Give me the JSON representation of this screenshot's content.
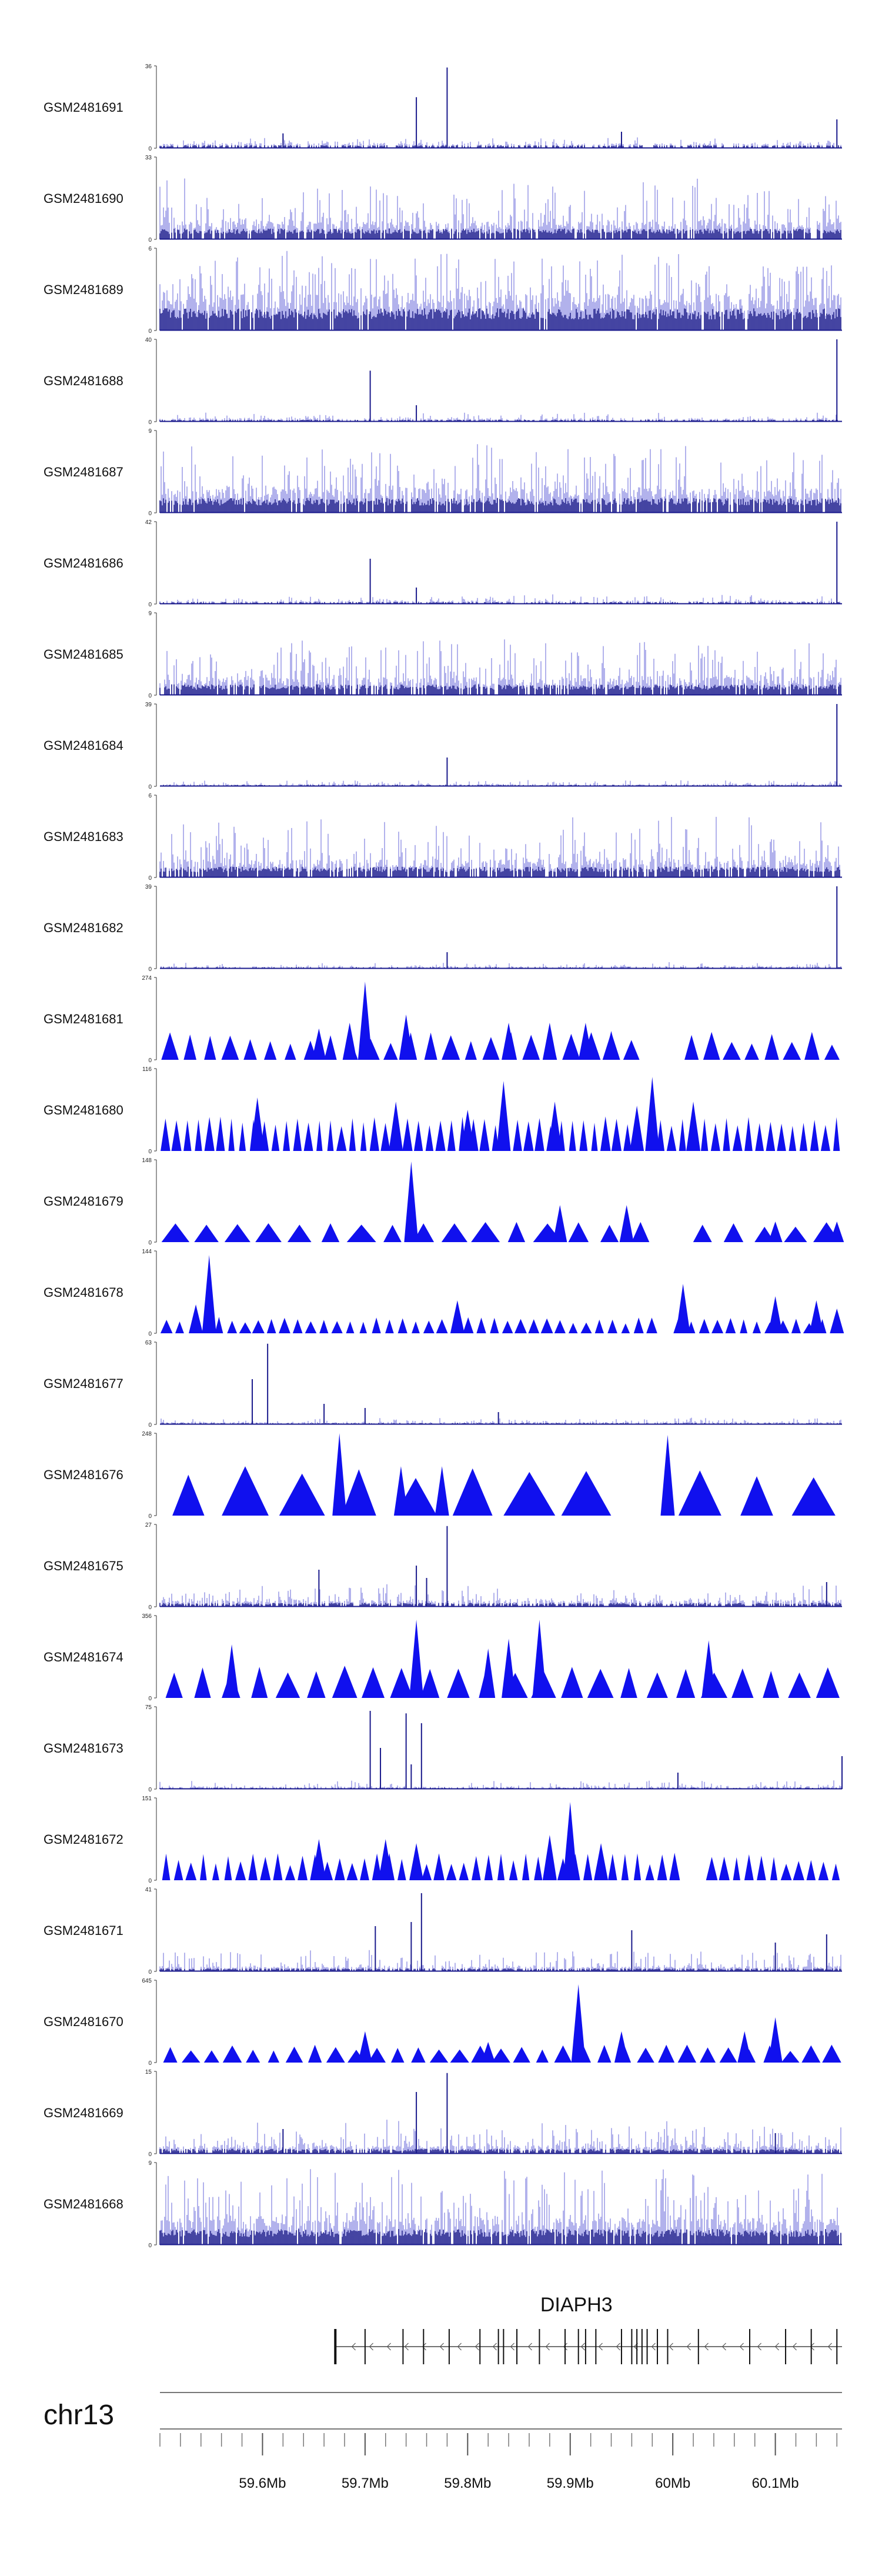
{
  "chart_data": {
    "type": "genome-browser",
    "chromosome": "chr13",
    "xlim_mb": [
      59.5,
      60.165
    ],
    "tracks": [
      {
        "name": "GSM2481691",
        "ymax": "36",
        "ymin": "0",
        "style": "bar",
        "fill": "#1a1a8c",
        "baseline": 0.06,
        "noise": 0.08,
        "density": 0.55,
        "peaks": [
          [
            59.75,
            0.62
          ],
          [
            59.78,
            0.98
          ],
          [
            59.62,
            0.18
          ],
          [
            59.95,
            0.2
          ],
          [
            60.16,
            0.35
          ]
        ]
      },
      {
        "name": "GSM2481690",
        "ymax": "33",
        "ymin": "0",
        "style": "bar",
        "fill": "#1a1a8c",
        "baseline": 0.22,
        "noise": 0.55,
        "density": 0.85,
        "peaks": []
      },
      {
        "name": "GSM2481689",
        "ymax": "6",
        "ymin": "0",
        "style": "bar",
        "fill": "#1a1a8c",
        "baseline": 0.45,
        "noise": 0.6,
        "density": 0.95,
        "peaks": []
      },
      {
        "name": "GSM2481688",
        "ymax": "40",
        "ymin": "0",
        "style": "bar",
        "fill": "#1a1a8c",
        "baseline": 0.04,
        "noise": 0.08,
        "density": 0.55,
        "peaks": [
          [
            59.705,
            0.62
          ],
          [
            59.75,
            0.2
          ],
          [
            60.16,
            1.0
          ]
        ]
      },
      {
        "name": "GSM2481687",
        "ymax": "9",
        "ymin": "0",
        "style": "bar",
        "fill": "#1a1a8c",
        "baseline": 0.3,
        "noise": 0.6,
        "density": 0.9,
        "peaks": []
      },
      {
        "name": "GSM2481686",
        "ymax": "42",
        "ymin": "0",
        "style": "bar",
        "fill": "#1a1a8c",
        "baseline": 0.04,
        "noise": 0.08,
        "density": 0.55,
        "peaks": [
          [
            59.705,
            0.55
          ],
          [
            59.75,
            0.2
          ],
          [
            60.16,
            1.0
          ]
        ]
      },
      {
        "name": "GSM2481685",
        "ymax": "9",
        "ymin": "0",
        "style": "bar",
        "fill": "#1a1a8c",
        "baseline": 0.22,
        "noise": 0.5,
        "density": 0.85,
        "peaks": []
      },
      {
        "name": "GSM2481684",
        "ymax": "39",
        "ymin": "0",
        "style": "bar",
        "fill": "#1a1a8c",
        "baseline": 0.03,
        "noise": 0.05,
        "density": 0.5,
        "peaks": [
          [
            59.78,
            0.35
          ],
          [
            60.16,
            1.0
          ]
        ]
      },
      {
        "name": "GSM2481683",
        "ymax": "6",
        "ymin": "0",
        "style": "bar",
        "fill": "#1a1a8c",
        "baseline": 0.22,
        "noise": 0.55,
        "density": 0.8,
        "peaks": []
      },
      {
        "name": "GSM2481682",
        "ymax": "39",
        "ymin": "0",
        "style": "bar",
        "fill": "#1a1a8c",
        "baseline": 0.03,
        "noise": 0.05,
        "density": 0.5,
        "peaks": [
          [
            59.78,
            0.2
          ],
          [
            60.16,
            1.0
          ]
        ]
      },
      {
        "name": "GSM2481681",
        "ymax": "274",
        "ymin": "0",
        "style": "tri",
        "fill": "#1010ee",
        "n": 34,
        "hmin": 0.18,
        "hmax": 0.35,
        "gaps": [
          [
            59.97,
            60.015
          ]
        ],
        "peaks": [
          [
            59.7,
            0.95
          ],
          [
            59.655,
            0.38
          ],
          [
            59.685,
            0.45
          ],
          [
            59.74,
            0.55
          ],
          [
            59.84,
            0.45
          ],
          [
            59.88,
            0.45
          ],
          [
            59.915,
            0.45
          ],
          [
            59.94,
            0.35
          ]
        ]
      },
      {
        "name": "GSM2481680",
        "ymax": "116",
        "ymin": "0",
        "style": "tri",
        "fill": "#1010ee",
        "n": 62,
        "hmin": 0.3,
        "hmax": 0.42,
        "gaps": [],
        "peaks": [
          [
            59.595,
            0.65
          ],
          [
            59.73,
            0.6
          ],
          [
            59.8,
            0.5
          ],
          [
            59.835,
            0.85
          ],
          [
            59.885,
            0.6
          ],
          [
            59.965,
            0.55
          ],
          [
            59.98,
            0.9
          ],
          [
            60.02,
            0.6
          ]
        ]
      },
      {
        "name": "GSM2481679",
        "ymax": "148",
        "ymin": "0",
        "style": "tri",
        "fill": "#1010ee",
        "n": 22,
        "hmin": 0.18,
        "hmax": 0.25,
        "gaps": [
          [
            59.97,
            60.005
          ]
        ],
        "peaks": [
          [
            59.745,
            0.98
          ],
          [
            59.89,
            0.45
          ],
          [
            59.955,
            0.45
          ],
          [
            60.1,
            0.25
          ],
          [
            60.16,
            0.25
          ]
        ]
      },
      {
        "name": "GSM2481678",
        "ymax": "144",
        "ymin": "0",
        "style": "tri",
        "fill": "#1010ee",
        "n": 52,
        "hmin": 0.12,
        "hmax": 0.2,
        "gaps": [
          [
            59.98,
            60.005
          ]
        ],
        "peaks": [
          [
            59.548,
            0.95
          ],
          [
            59.535,
            0.35
          ],
          [
            59.79,
            0.4
          ],
          [
            60.01,
            0.6
          ],
          [
            60.1,
            0.45
          ],
          [
            60.14,
            0.4
          ],
          [
            60.16,
            0.3
          ]
        ]
      },
      {
        "name": "GSM2481677",
        "ymax": "63",
        "ymin": "0",
        "style": "bar",
        "fill": "#1a1a8c",
        "baseline": 0.03,
        "noise": 0.06,
        "density": 0.55,
        "peaks": [
          [
            59.59,
            0.55
          ],
          [
            59.605,
            0.98
          ],
          [
            59.66,
            0.25
          ],
          [
            59.7,
            0.2
          ],
          [
            59.83,
            0.15
          ]
        ]
      },
      {
        "name": "GSM2481676",
        "ymax": "248",
        "ymin": "0",
        "style": "tri",
        "fill": "#1010ee",
        "n": 12,
        "hmin": 0.45,
        "hmax": 0.6,
        "gaps": [
          [
            59.96,
            59.99
          ]
        ],
        "peaks": [
          [
            59.675,
            1.0
          ],
          [
            59.995,
            0.98
          ],
          [
            59.735,
            0.6
          ],
          [
            59.775,
            0.6
          ]
        ]
      },
      {
        "name": "GSM2481675",
        "ymax": "27",
        "ymin": "0",
        "style": "bar",
        "fill": "#1a1a8c",
        "baseline": 0.08,
        "noise": 0.2,
        "density": 0.7,
        "peaks": [
          [
            59.78,
            0.98
          ],
          [
            59.655,
            0.45
          ],
          [
            59.75,
            0.5
          ],
          [
            59.76,
            0.35
          ],
          [
            60.15,
            0.3
          ]
        ]
      },
      {
        "name": "GSM2481674",
        "ymax": "356",
        "ymin": "0",
        "style": "tri",
        "fill": "#1010ee",
        "n": 24,
        "hmin": 0.3,
        "hmax": 0.4,
        "gaps": [
          [
            59.99,
            60.01
          ]
        ],
        "peaks": [
          [
            59.57,
            0.65
          ],
          [
            59.75,
            0.95
          ],
          [
            59.84,
            0.72
          ],
          [
            59.87,
            0.95
          ],
          [
            60.035,
            0.7
          ],
          [
            59.82,
            0.6
          ]
        ]
      },
      {
        "name": "GSM2481673",
        "ymax": "75",
        "ymin": "0",
        "style": "bar",
        "fill": "#1a1a8c",
        "baseline": 0.03,
        "noise": 0.08,
        "density": 0.55,
        "peaks": [
          [
            59.705,
            0.95
          ],
          [
            59.715,
            0.5
          ],
          [
            59.74,
            0.92
          ],
          [
            59.755,
            0.8
          ],
          [
            59.745,
            0.3
          ],
          [
            60.005,
            0.2
          ],
          [
            60.165,
            0.4
          ]
        ]
      },
      {
        "name": "GSM2481672",
        "ymax": "151",
        "ymin": "0",
        "style": "tri",
        "fill": "#1010ee",
        "n": 55,
        "hmin": 0.18,
        "hmax": 0.35,
        "gaps": [
          [
            60.01,
            60.03
          ]
        ],
        "peaks": [
          [
            59.9,
            0.95
          ],
          [
            59.88,
            0.55
          ],
          [
            59.655,
            0.5
          ],
          [
            59.72,
            0.5
          ],
          [
            59.75,
            0.45
          ],
          [
            59.93,
            0.45
          ]
        ]
      },
      {
        "name": "GSM2481671",
        "ymax": "41",
        "ymin": "0",
        "style": "bar",
        "fill": "#1a1a8c",
        "baseline": 0.06,
        "noise": 0.22,
        "density": 0.75,
        "peaks": [
          [
            59.755,
            0.95
          ],
          [
            59.71,
            0.55
          ],
          [
            59.745,
            0.6
          ],
          [
            59.96,
            0.5
          ],
          [
            60.1,
            0.35
          ],
          [
            60.15,
            0.45
          ]
        ]
      },
      {
        "name": "GSM2481670",
        "ymax": "645",
        "ymin": "0",
        "style": "tri",
        "fill": "#1010ee",
        "n": 33,
        "hmin": 0.14,
        "hmax": 0.22,
        "gaps": [],
        "peaks": [
          [
            59.908,
            0.95
          ],
          [
            59.7,
            0.38
          ],
          [
            59.95,
            0.38
          ],
          [
            60.1,
            0.55
          ],
          [
            60.07,
            0.38
          ],
          [
            59.82,
            0.25
          ]
        ]
      },
      {
        "name": "GSM2481669",
        "ymax": "15",
        "ymin": "0",
        "style": "bar",
        "fill": "#1a1a8c",
        "baseline": 0.1,
        "noise": 0.35,
        "density": 0.8,
        "peaks": [
          [
            59.78,
            0.98
          ],
          [
            59.75,
            0.75
          ],
          [
            59.62,
            0.3
          ],
          [
            60.1,
            0.25
          ]
        ]
      },
      {
        "name": "GSM2481668",
        "ymax": "9",
        "ymin": "0",
        "style": "bar",
        "fill": "#1a1a8c",
        "baseline": 0.32,
        "noise": 0.65,
        "density": 0.92,
        "peaks": []
      }
    ],
    "gene": {
      "name": "DIAPH3",
      "start_mb": 59.67,
      "end_mb": 60.165,
      "strand": "-",
      "exons_mb": [
        59.671,
        59.7,
        59.737,
        59.757,
        59.782,
        59.812,
        59.83,
        59.835,
        59.848,
        59.87,
        59.895,
        59.908,
        59.915,
        59.925,
        59.95,
        59.96,
        59.965,
        59.97,
        59.975,
        59.985,
        59.995,
        60.025,
        60.075,
        60.11,
        60.135,
        60.16
      ]
    },
    "axis": {
      "ticks_mb": [
        59.6,
        59.7,
        59.8,
        59.9,
        60.0,
        60.1
      ],
      "tick_labels": [
        "59.6Mb",
        "59.7Mb",
        "59.8Mb",
        "59.9Mb",
        "60Mb",
        "60.1Mb"
      ],
      "minor_step_mb": 0.02
    }
  }
}
